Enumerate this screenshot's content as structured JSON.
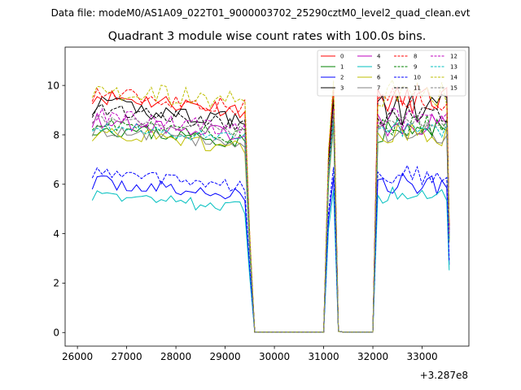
{
  "figure": {
    "suptitle": "Data file: modeM0/AS1A09_022T01_9000003702_25290cztM0_level2_quad_clean.evt"
  },
  "chart_data": {
    "type": "line",
    "title": "Quadrant 3 module wise count rates with 100.0s bins.",
    "xlabel": "",
    "ylabel": "",
    "x_offset_label": "+3.287e8",
    "xlim": [
      25750,
      33950
    ],
    "ylim": [
      -0.55,
      11.55
    ],
    "xticks": [
      26000,
      27000,
      28000,
      29000,
      30000,
      31000,
      32000,
      33000
    ],
    "yticks": [
      0,
      2,
      4,
      6,
      8,
      10
    ],
    "legend_position": "top-right",
    "segments": [
      {
        "start": 26300,
        "end": 29500,
        "profile": "active"
      },
      {
        "start": 29500,
        "end": 29700,
        "profile": "drop"
      },
      {
        "start": 29700,
        "end": 31100,
        "profile": "zero"
      },
      {
        "start": 31100,
        "end": 31400,
        "profile": "spike"
      },
      {
        "start": 31400,
        "end": 32100,
        "profile": "zero"
      },
      {
        "start": 32100,
        "end": 33550,
        "profile": "recovery"
      }
    ],
    "series": [
      {
        "name": "0",
        "color": "#ff0000",
        "dash": "solid",
        "base": 9.6,
        "amp": 0.35,
        "seed": 11
      },
      {
        "name": "1",
        "color": "#008000",
        "dash": "solid",
        "base": 8.3,
        "amp": 0.3,
        "seed": 23
      },
      {
        "name": "2",
        "color": "#0000ff",
        "dash": "solid",
        "base": 6.1,
        "amp": 0.3,
        "seed": 37
      },
      {
        "name": "3",
        "color": "#000000",
        "dash": "solid",
        "base": 9.2,
        "amp": 0.4,
        "seed": 41
      },
      {
        "name": "4",
        "color": "#bf00bf",
        "dash": "solid",
        "base": 8.6,
        "amp": 0.3,
        "seed": 53
      },
      {
        "name": "5",
        "color": "#00bfbf",
        "dash": "solid",
        "base": 5.6,
        "amp": 0.25,
        "seed": 67
      },
      {
        "name": "6",
        "color": "#bfbf00",
        "dash": "solid",
        "base": 8.1,
        "amp": 0.35,
        "seed": 71
      },
      {
        "name": "7",
        "color": "#808080",
        "dash": "solid",
        "base": 8.2,
        "amp": 0.25,
        "seed": 83
      },
      {
        "name": "8",
        "color": "#ff0000",
        "dash": "dashed",
        "base": 9.7,
        "amp": 0.35,
        "seed": 97
      },
      {
        "name": "9",
        "color": "#008000",
        "dash": "dashed",
        "base": 8.5,
        "amp": 0.3,
        "seed": 101
      },
      {
        "name": "10",
        "color": "#0000ff",
        "dash": "dashed",
        "base": 6.5,
        "amp": 0.25,
        "seed": 113
      },
      {
        "name": "11",
        "color": "#000000",
        "dash": "dashed",
        "base": 9.0,
        "amp": 0.3,
        "seed": 127
      },
      {
        "name": "12",
        "color": "#bf00bf",
        "dash": "dashed",
        "base": 8.8,
        "amp": 0.3,
        "seed": 131
      },
      {
        "name": "13",
        "color": "#00bfbf",
        "dash": "dashed",
        "base": 8.4,
        "amp": 0.25,
        "seed": 139
      },
      {
        "name": "14",
        "color": "#bfbf00",
        "dash": "dashed",
        "base": 9.9,
        "amp": 0.4,
        "seed": 149
      },
      {
        "name": "15",
        "color": "#808080",
        "dash": "dashed",
        "base": 8.7,
        "amp": 0.25,
        "seed": 157
      }
    ]
  }
}
